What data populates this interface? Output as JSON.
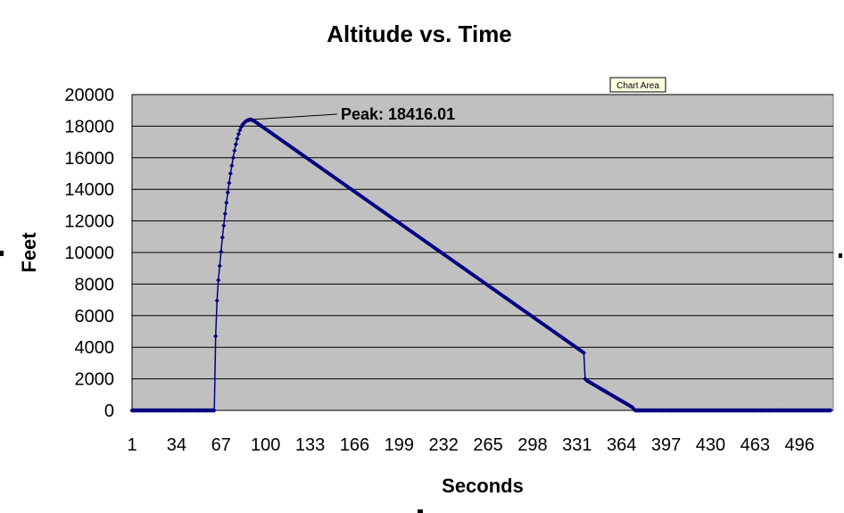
{
  "tooltip": "Chart Area",
  "chart_data": {
    "type": "scatter",
    "title": "Altitude vs. Time",
    "xlabel": "Seconds",
    "ylabel": "Feet",
    "x_ticks": [
      "1",
      "34",
      "67",
      "100",
      "133",
      "166",
      "199",
      "232",
      "265",
      "298",
      "331",
      "364",
      "397",
      "430",
      "463",
      "496"
    ],
    "y_ticks": [
      "0",
      "2000",
      "4000",
      "6000",
      "8000",
      "10000",
      "12000",
      "14000",
      "16000",
      "18000",
      "20000"
    ],
    "xlim": [
      1,
      521
    ],
    "ylim": [
      0,
      20000
    ],
    "grid": true,
    "colors": {
      "plot_bg": "#c0c0c0",
      "series": "#000080",
      "gridline": "#000000"
    },
    "annotation": {
      "text": "Peak: 18416.01",
      "x": 89,
      "y": 18416.01
    },
    "series": [
      {
        "points": [
          [
            1,
            0
          ],
          [
            62,
            0
          ],
          [
            63,
            4700
          ],
          [
            64,
            6950
          ],
          [
            65,
            8250
          ],
          [
            66,
            9150
          ],
          [
            67,
            10050
          ],
          [
            68,
            10950
          ],
          [
            69,
            11700
          ],
          [
            70,
            12450
          ],
          [
            71,
            13150
          ],
          [
            72,
            13800
          ],
          [
            73,
            14400
          ],
          [
            74,
            15000
          ],
          [
            75,
            15500
          ],
          [
            76,
            16000
          ],
          [
            77,
            16450
          ],
          [
            78,
            16850
          ],
          [
            79,
            17200
          ],
          [
            80,
            17500
          ],
          [
            81,
            17750
          ],
          [
            82,
            17950
          ],
          [
            83,
            18100
          ],
          [
            84,
            18200
          ],
          [
            85,
            18280
          ],
          [
            86,
            18340
          ],
          [
            87,
            18380
          ],
          [
            88,
            18405
          ],
          [
            89,
            18416.01
          ],
          [
            90,
            18390
          ],
          [
            92,
            18300
          ],
          [
            336,
            3650
          ],
          [
            337,
            2000
          ],
          [
            338,
            1900
          ],
          [
            372,
            200
          ],
          [
            374,
            0
          ],
          [
            519,
            0
          ]
        ]
      }
    ]
  }
}
